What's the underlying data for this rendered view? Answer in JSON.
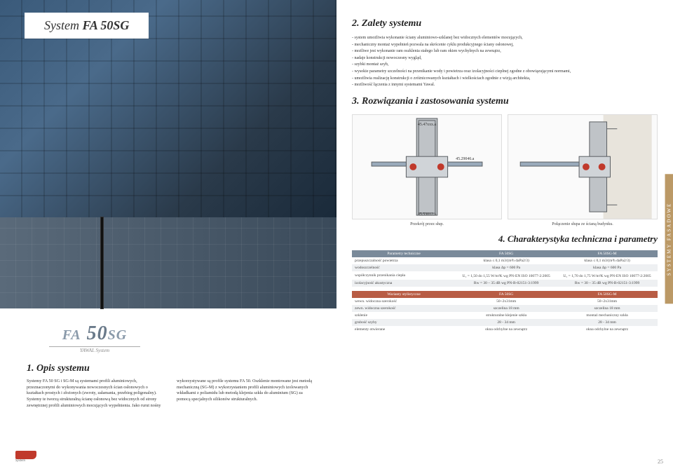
{
  "title_prefix": "System ",
  "title_bold": "FA 50SG",
  "fa_logo": {
    "big": "FA 50",
    "suffix": "SG",
    "sub": "YAWAL System"
  },
  "sec1": {
    "heading": "1. Opis systemu",
    "col1": "Systemy FA 50 SG i SG-M są systemami profili aluminiowych, przeznaczonymi do wykonywania nowoczesnych ścian osłonowych o kształtach prostych i złożonych (zwroty, załamania, przebieg poligonalny). Systemy te tworzą strukturalną ścianę osłonową bez widocznych od strony zewnętrznej profili aluminiowych mocujących wypełnienia. Jako rurut nośny",
    "col2": "wykorzystywane są profile systemu FA 50. Oszklenie montowane jest metodą mechaniczną (SG-M) z wykorzystaniem profili aluminiowych izolowanych wkładkami z poliamidu lub metodą klejenia szkła do aluminium (SG) za pomocą specjalnych silikonów strukturalnych."
  },
  "sec2": {
    "heading": "2. Zalety systemu",
    "bullets": [
      "- system umożliwia wykonanie ściany aluminiowo-szklanej bez widocznych elementów mocujących,",
      "- mechaniczny montaż wypełnień pozwala na skrócenie cyklu produkcyjnego ściany osłonowej,",
      "- możliwe jest wykonanie ram oszklenia stałego lub ram okien wychylnych na zewnątrz,",
      "- nadaje konstrukcji nowoczesny wygląd,",
      "- szybki montaż szyb,",
      "- wysokie parametry szczelności na przenikanie wody i powietrza oraz izolacyjności cieplnej zgodne z obowiązującymi normami,",
      "- umożliwia realizację konstrukcji o zróżnicowanych kształtach i wielkościach zgodnie z wizją architekta,",
      "- możliwość łączenia z innymi systemami Yawal."
    ]
  },
  "sec3": {
    "heading": "3. Rozwiązania i zastosowania systemu"
  },
  "diagrams": {
    "label_top": "45.47xxx.a",
    "label_mid": "45.29046.a",
    "label_bot": "45.53012.a",
    "cap1": "Przekrój przez słup.",
    "cap2": "Połączenie słupa ze ścianą budynku."
  },
  "sec4": {
    "heading": "4. Charakterystyka techniczna i parametry"
  },
  "table1": {
    "header": [
      "Parametry techniczne",
      "FA 50SG",
      "FA 50SG-M"
    ],
    "rows": [
      [
        "przepuszczalność powietrza",
        "klasa ≤ 0,1 m3/(m²h daPa2/3)",
        "klasa ≤ 0,1 m3/(m²h daPa2/3)"
      ],
      [
        "wodoszczelność",
        "klasa Δp = 600 Pa",
        "klasa Δp = 600 Pa"
      ],
      [
        "współczynnik przenikania ciepła",
        "U꜀ = 1,50 do 1,55 W/m²K wg PN-EN ISO 10077-2:2005",
        "U꜀ = 1,70 do 1,75 W/m²K wg PN-EN ISO 10077-2:2005"
      ],
      [
        "izolacyjność akustyczna",
        "Rw = 30 – 35 dB wg PN-B-02151-3:1999",
        "Rw = 30 – 35 dB wg PN-B-02151-3:1999"
      ]
    ]
  },
  "table2": {
    "header": [
      "Warianty stylistyczne",
      "FA 50SG",
      "FA 50SG-M"
    ],
    "rows": [
      [
        "wewn. widoczna szerokość",
        "50÷2x31mm",
        "50÷2x31mm"
      ],
      [
        "zewn. widoczna szerokość",
        "szczelina 18 mm",
        "szczelina 18 mm"
      ],
      [
        "szklenie",
        "strukturalne klejenie szkła",
        "montaż mechaniczny szkła"
      ],
      [
        "grubość szyby",
        "28 - 34 mm",
        "28 - 34 mm"
      ],
      [
        "elementy otwierane",
        "okna odchylne na zewnątrz",
        "okna odchylne na zewnątrz"
      ]
    ]
  },
  "spine": "SYSTEMY FASADOWE",
  "logo_sub": "System",
  "pagenum": "25",
  "colors": {
    "header_bg": "#7a8a9a",
    "header2_bg": "#b85c44",
    "profile_alu": "#bfc3c7",
    "profile_dark": "#5a5e62",
    "gasket": "#c0392b",
    "thermal": "#d0d4d8"
  }
}
